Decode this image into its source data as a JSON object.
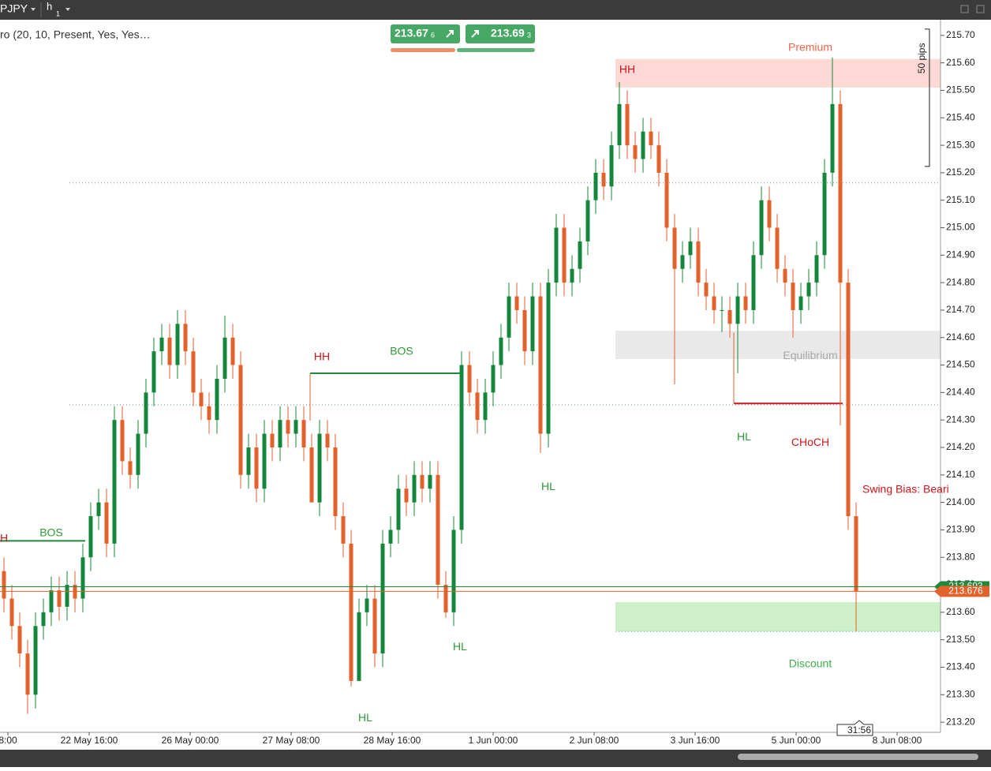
{
  "chart_data": {
    "type": "candlestick",
    "symbol": "PJPY",
    "timeframe": "h",
    "timeframe_sub": "1",
    "indicator": "ro (20, 10, Present, Yes, Yes…",
    "sell_price": "213.67",
    "sell_pip": "6",
    "buy_price": "213.69",
    "buy_pip": "3",
    "colors": {
      "up": "#16873a",
      "down": "#e2622c"
    },
    "open": [
      213.75,
      213.65,
      213.55,
      213.45,
      213.3,
      213.55,
      213.6,
      213.68,
      213.62,
      213.7,
      213.65,
      213.8,
      213.95,
      214.0,
      213.85,
      214.3,
      214.15,
      214.1,
      214.25,
      214.4,
      214.55,
      214.6,
      214.5,
      214.65,
      214.55,
      214.4,
      214.35,
      214.3,
      214.45,
      214.6,
      214.5,
      214.1,
      214.2,
      214.05,
      214.25,
      214.2,
      214.3,
      214.25,
      214.3,
      214.2,
      214.0,
      214.25,
      214.2,
      213.95,
      213.85,
      213.35,
      213.6,
      213.65,
      213.45,
      213.85,
      213.9,
      214.05,
      214.0,
      214.1,
      214.05,
      214.1,
      213.7,
      213.6,
      213.9,
      214.5,
      214.4,
      214.3,
      214.4,
      214.5,
      214.6,
      214.75,
      214.7,
      214.55,
      214.75,
      214.25,
      214.8,
      215.0,
      214.8,
      214.85,
      214.95,
      215.1,
      215.2,
      215.15,
      215.3,
      215.45,
      215.3,
      215.25,
      215.35,
      215.3,
      215.2,
      215.0,
      214.85,
      214.9,
      214.95,
      214.8,
      214.75,
      214.7,
      214.7,
      214.65,
      214.75,
      214.7,
      214.9,
      215.1,
      215.0,
      214.85,
      214.8,
      214.7,
      214.75,
      214.8,
      214.9,
      215.2,
      215.45,
      214.8,
      213.95
    ],
    "high": [
      213.8,
      213.7,
      213.6,
      213.5,
      213.6,
      213.65,
      213.73,
      213.73,
      213.75,
      213.75,
      213.85,
      214.0,
      214.05,
      214.05,
      214.35,
      214.35,
      214.2,
      214.3,
      214.45,
      214.6,
      214.65,
      214.65,
      214.7,
      214.7,
      214.6,
      214.45,
      214.4,
      214.5,
      214.68,
      214.65,
      214.55,
      214.25,
      214.25,
      214.3,
      214.3,
      214.35,
      214.35,
      214.35,
      214.35,
      214.25,
      214.3,
      214.3,
      214.25,
      214.0,
      213.9,
      213.65,
      213.7,
      213.7,
      213.9,
      213.95,
      214.1,
      214.1,
      214.15,
      214.15,
      214.15,
      214.15,
      213.75,
      213.95,
      214.55,
      214.55,
      214.45,
      214.45,
      214.55,
      214.65,
      214.8,
      214.8,
      214.75,
      214.8,
      214.8,
      214.85,
      215.05,
      215.05,
      214.9,
      215.0,
      215.15,
      215.25,
      215.25,
      215.35,
      215.53,
      215.5,
      215.35,
      215.4,
      215.4,
      215.35,
      215.25,
      215.05,
      214.95,
      215.0,
      215.0,
      214.85,
      214.8,
      214.75,
      214.75,
      214.8,
      214.8,
      214.95,
      215.15,
      215.15,
      215.05,
      214.9,
      214.85,
      214.8,
      214.85,
      214.95,
      215.25,
      215.62,
      215.5,
      214.85,
      214.0
    ],
    "low": [
      213.6,
      213.5,
      213.4,
      213.23,
      213.25,
      213.5,
      213.55,
      213.57,
      213.57,
      213.6,
      213.6,
      213.75,
      213.9,
      213.8,
      213.8,
      214.1,
      214.05,
      214.05,
      214.2,
      214.35,
      214.5,
      214.45,
      214.45,
      214.5,
      214.35,
      214.3,
      214.25,
      214.25,
      214.4,
      214.45,
      214.05,
      214.05,
      214.0,
      214.0,
      214.15,
      214.15,
      214.2,
      214.2,
      214.15,
      214.02,
      213.95,
      214.15,
      213.9,
      213.8,
      213.33,
      213.35,
      213.55,
      213.4,
      213.4,
      213.8,
      213.85,
      213.95,
      213.95,
      214.0,
      214.0,
      213.65,
      213.58,
      213.55,
      213.85,
      214.35,
      214.25,
      214.25,
      214.35,
      214.45,
      214.55,
      214.65,
      214.5,
      214.5,
      214.18,
      214.2,
      214.75,
      214.75,
      214.75,
      214.8,
      214.9,
      215.05,
      215.1,
      215.1,
      215.25,
      215.25,
      215.2,
      215.2,
      215.25,
      215.15,
      214.95,
      214.43,
      214.8,
      214.85,
      214.75,
      214.7,
      214.65,
      214.62,
      214.6,
      214.47,
      214.65,
      214.65,
      214.85,
      214.95,
      214.8,
      214.75,
      214.6,
      214.65,
      214.7,
      214.75,
      214.85,
      215.15,
      214.28,
      213.9,
      213.53
    ],
    "close": [
      213.65,
      213.55,
      213.45,
      213.3,
      213.55,
      213.6,
      213.68,
      213.62,
      213.7,
      213.65,
      213.8,
      213.95,
      214.0,
      213.85,
      214.3,
      214.15,
      214.1,
      214.25,
      214.4,
      214.55,
      214.6,
      214.5,
      214.65,
      214.55,
      214.4,
      214.35,
      214.3,
      214.45,
      214.6,
      214.5,
      214.1,
      214.2,
      214.05,
      214.25,
      214.2,
      214.3,
      214.25,
      214.3,
      214.2,
      214.0,
      214.25,
      214.2,
      213.95,
      213.85,
      213.35,
      213.6,
      213.65,
      213.45,
      213.85,
      213.9,
      214.05,
      214.0,
      214.1,
      214.05,
      214.1,
      213.7,
      213.6,
      213.9,
      214.5,
      214.4,
      214.3,
      214.4,
      214.5,
      214.6,
      214.75,
      214.7,
      214.55,
      214.75,
      214.25,
      214.8,
      215.0,
      214.8,
      214.85,
      214.95,
      215.1,
      215.2,
      215.15,
      215.3,
      215.45,
      215.3,
      215.25,
      215.35,
      215.3,
      215.2,
      215.0,
      214.85,
      214.9,
      214.95,
      214.8,
      214.75,
      214.7,
      214.7,
      214.65,
      214.75,
      214.7,
      214.9,
      215.1,
      215.0,
      214.85,
      214.8,
      214.7,
      214.75,
      214.8,
      214.9,
      215.2,
      215.45,
      214.8,
      213.95,
      213.676
    ],
    "xlim": [
      -0.5,
      118.7
    ],
    "xticks": [
      {
        "value": 0.5,
        "label": "8:00"
      },
      {
        "value": 10.8,
        "label": "22 May 16:00"
      },
      {
        "value": 23.6,
        "label": "26 May 00:00"
      },
      {
        "value": 36.4,
        "label": "27 May 08:00"
      },
      {
        "value": 49.2,
        "label": "28 May 16:00"
      },
      {
        "value": 62,
        "label": "1 Jun 00:00"
      },
      {
        "value": 74.8,
        "label": "2 Jun 08:00"
      },
      {
        "value": 87.6,
        "label": "3 Jun 16:00"
      },
      {
        "value": 100.4,
        "label": "5 Jun 00:00"
      },
      {
        "value": 113.2,
        "label": "8 Jun 08:00"
      }
    ],
    "ylim": [
      213.163,
      215.757
    ],
    "yticks": [
      {
        "value": 215.7,
        "label": "215.70"
      },
      {
        "value": 215.6,
        "label": "215.60"
      },
      {
        "value": 215.5,
        "label": "215.50"
      },
      {
        "value": 215.4,
        "label": "215.40"
      },
      {
        "value": 215.3,
        "label": "215.30"
      },
      {
        "value": 215.2,
        "label": "215.20"
      },
      {
        "value": 215.1,
        "label": "215.10"
      },
      {
        "value": 215,
        "label": "215.00"
      },
      {
        "value": 214.9,
        "label": "214.90"
      },
      {
        "value": 214.8,
        "label": "214.80"
      },
      {
        "value": 214.7,
        "label": "214.70"
      },
      {
        "value": 214.6,
        "label": "214.60"
      },
      {
        "value": 214.5,
        "label": "214.50"
      },
      {
        "value": 214.4,
        "label": "214.40"
      },
      {
        "value": 214.3,
        "label": "214.30"
      },
      {
        "value": 214.2,
        "label": "214.20"
      },
      {
        "value": 214.1,
        "label": "214.10"
      },
      {
        "value": 214,
        "label": "214.00"
      },
      {
        "value": 213.9,
        "label": "213.90"
      },
      {
        "value": 213.8,
        "label": "213.80"
      },
      {
        "value": 213.7,
        "label": "213.70"
      },
      {
        "value": 213.6,
        "label": "213.60"
      },
      {
        "value": 213.5,
        "label": "213.50"
      },
      {
        "value": 213.4,
        "label": "213.40"
      },
      {
        "value": 213.3,
        "label": "213.30"
      },
      {
        "value": 213.2,
        "label": "213.20"
      }
    ],
    "ask": {
      "value": 213.693,
      "label": "213.693",
      "color": "#1f8a3c"
    },
    "bid": {
      "value": 213.676,
      "label": "213.676",
      "color": "#e2622c"
    },
    "zones": [
      {
        "low": 215.51,
        "high": 215.614,
        "from": 77.5,
        "color": "#fdd9d5"
      },
      {
        "low": 214.522,
        "high": 214.625,
        "from": 77.5,
        "color": "#e9e9e9"
      },
      {
        "low": 213.53,
        "high": 213.637,
        "from": 77.5,
        "color": "#cdf0c9"
      }
    ],
    "dotted_levels": [
      215.163,
      214.355
    ],
    "dotted_from": 8.3,
    "structure_lines": [
      {
        "level": 213.86,
        "from": -0.5,
        "to": 10.3,
        "color": "#1f8a3c"
      },
      {
        "level": 214.47,
        "from": 38.8,
        "to": 58,
        "color": "#1f8a3c"
      },
      {
        "level": 214.36,
        "from": 92.5,
        "to": 106.3,
        "color": "#d0161b"
      }
    ],
    "labels": [
      {
        "text": "H",
        "x": 0,
        "price": 213.867,
        "color": "#d0161b"
      },
      {
        "text": "BOS",
        "x": 6,
        "price": 213.887,
        "color": "#2e9a36"
      },
      {
        "text": "HH",
        "x": 40.3,
        "price": 214.528,
        "color": "#d0161b"
      },
      {
        "text": "BOS",
        "x": 50.4,
        "price": 214.548,
        "color": "#2e9a36"
      },
      {
        "text": "HH",
        "x": 79,
        "price": 215.574,
        "color": "#d0161b"
      },
      {
        "text": "HL",
        "x": 45.8,
        "price": 213.214,
        "color": "#2e9a36"
      },
      {
        "text": "HL",
        "x": 57.8,
        "price": 213.473,
        "color": "#2e9a36"
      },
      {
        "text": "HL",
        "x": 69,
        "price": 214.056,
        "color": "#2e9a36"
      },
      {
        "text": "HL",
        "x": 93.8,
        "price": 214.237,
        "color": "#2e9a36"
      },
      {
        "text": "CHoCH",
        "x": 102.2,
        "price": 214.217,
        "color": "#d0161b"
      },
      {
        "text": "Swing Bias: Beari",
        "x": 108.8,
        "price": 214.045,
        "color": "#d0161b"
      },
      {
        "text": "Premium",
        "x": 102.2,
        "price": 215.654,
        "color": "#e8674a"
      },
      {
        "text": "Equilibrium",
        "x": 102.2,
        "price": 214.533,
        "color": "#a8a8a8"
      },
      {
        "text": "Discount",
        "x": 102.2,
        "price": 213.41,
        "color": "#3cb04a"
      }
    ],
    "ruler": {
      "text": "50 pips",
      "top": 215.723,
      "bottom": 215.223
    },
    "countdown": "31:56"
  }
}
